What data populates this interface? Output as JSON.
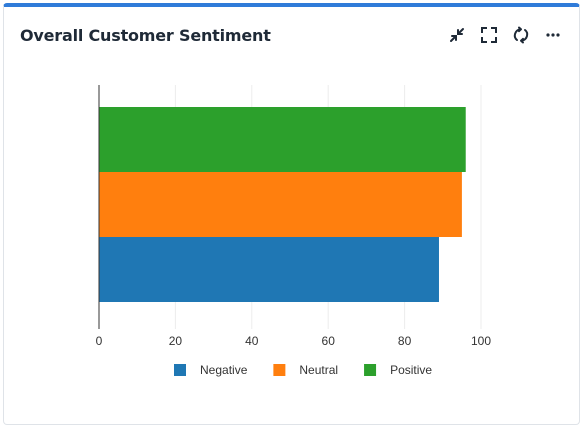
{
  "card": {
    "title": "Overall Customer Sentiment",
    "accent_color": "#2f7bd9"
  },
  "toolbar": {
    "icons": [
      "collapse-icon",
      "expand-icon",
      "refresh-icon",
      "more-icon"
    ],
    "more_label": "···"
  },
  "chart_data": {
    "type": "bar",
    "orientation": "horizontal",
    "stacked": false,
    "categories": [
      ""
    ],
    "series": [
      {
        "name": "Negative",
        "values": [
          89
        ],
        "color": "#1f77b4"
      },
      {
        "name": "Neutral",
        "values": [
          95
        ],
        "color": "#ff7f0e"
      },
      {
        "name": "Positive",
        "values": [
          96
        ],
        "color": "#2ca02c"
      }
    ],
    "xlim": [
      0,
      100
    ],
    "xticks": [
      0,
      20,
      40,
      60,
      80,
      100
    ],
    "grid": true,
    "legend": "bottom"
  }
}
